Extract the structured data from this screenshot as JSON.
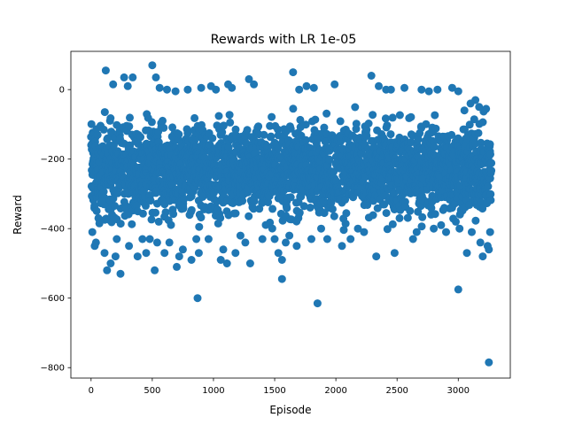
{
  "chart_data": {
    "type": "scatter",
    "title": "Rewards with LR 1e-05",
    "xlabel": "Episode",
    "ylabel": "Reward",
    "xlim": [
      -165,
      3425
    ],
    "ylim": [
      -830,
      110
    ],
    "xticks": [
      0,
      500,
      1000,
      1500,
      2000,
      2500,
      3000
    ],
    "yticks": [
      0,
      -200,
      -400,
      -600,
      -800
    ],
    "xtick_labels": [
      "0",
      "500",
      "1000",
      "1500",
      "2000",
      "2500",
      "3000"
    ],
    "ytick_labels": [
      "0",
      "−200",
      "−400",
      "−600",
      "−800"
    ],
    "marker_color": "#1f77b4",
    "grid": false,
    "series": [
      {
        "x": [
          120,
          180,
          270,
          300,
          340,
          500,
          530,
          560,
          620,
          690,
          790,
          900,
          980,
          1020,
          1120,
          1150,
          1290,
          1330,
          1650,
          1700,
          1760,
          1820,
          1990,
          2290,
          2350,
          2410,
          2450,
          2560,
          2700,
          2760,
          2830,
          2950,
          3000,
          3050,
          3100,
          3140,
          3170,
          10,
          30,
          40,
          60,
          90,
          110,
          130,
          160,
          200,
          210,
          240,
          310,
          380,
          420,
          450,
          480,
          520,
          540,
          600,
          640,
          700,
          720,
          750,
          820,
          860,
          880,
          960,
          1060,
          1080,
          1180,
          1220,
          1260,
          1400,
          1500,
          1530,
          1560,
          1590,
          1620,
          1680,
          1800,
          1880,
          1930,
          2050,
          2120,
          2180,
          2230,
          2330,
          2480,
          2520,
          2630,
          2660,
          2800,
          2860,
          2900,
          2980,
          3010,
          3070,
          3110,
          3180,
          3200,
          3240,
          3250,
          3260,
          870,
          1850,
          3000,
          3250,
          1560,
          1300,
          1110
        ],
        "y": [
          55,
          15,
          35,
          10,
          35,
          70,
          35,
          5,
          0,
          -5,
          0,
          5,
          10,
          0,
          15,
          5,
          30,
          15,
          50,
          0,
          10,
          5,
          15,
          40,
          10,
          0,
          0,
          5,
          0,
          -5,
          0,
          5,
          -5,
          -60,
          -40,
          -30,
          -50,
          -410,
          -450,
          -440,
          -370,
          -320,
          -470,
          -520,
          -500,
          -480,
          -430,
          -530,
          -450,
          -480,
          -430,
          -470,
          -430,
          -520,
          -440,
          -470,
          -440,
          -510,
          -480,
          -460,
          -490,
          -430,
          -470,
          -430,
          -490,
          -460,
          -470,
          -420,
          -440,
          -430,
          -430,
          -470,
          -490,
          -440,
          -420,
          -450,
          -430,
          -400,
          -430,
          -450,
          -430,
          -400,
          -410,
          -480,
          -470,
          -370,
          -430,
          -410,
          -400,
          -390,
          -410,
          -380,
          -400,
          -470,
          -410,
          -440,
          -480,
          -450,
          -460,
          -410,
          -600,
          -615,
          -575,
          -785,
          -545,
          -500,
          -500
        ]
      }
    ],
    "dense_band": {
      "x_range": [
        0,
        3270
      ],
      "y_range": [
        -420,
        -40
      ],
      "description": "bulk of roughly 3270 episode rewards between about -420 and -40"
    }
  }
}
